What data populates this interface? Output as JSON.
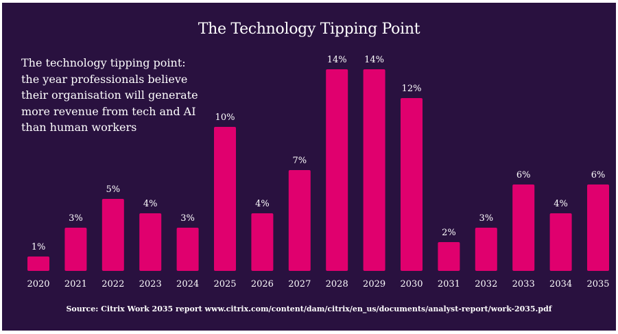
{
  "chart_data": {
    "type": "bar",
    "title": "The Technology Tipping Point",
    "subtitle": "The technology tipping point: the year professionals believe their organisation will generate more revenue from tech and AI than human workers",
    "source": "Source: Citrix Work 2035 report www.citrix.com/content/dam/citrix/en_us/documents/analyst-report/work-2035.pdf",
    "categories": [
      "2020",
      "2021",
      "2022",
      "2023",
      "2024",
      "2025",
      "2026",
      "2027",
      "2028",
      "2029",
      "2030",
      "2031",
      "2032",
      "2033",
      "2034",
      "2035"
    ],
    "values": [
      1,
      3,
      5,
      4,
      3,
      10,
      4,
      7,
      14,
      14,
      12,
      2,
      3,
      6,
      4,
      6
    ],
    "value_labels": [
      "1%",
      "3%",
      "5%",
      "4%",
      "3%",
      "10%",
      "4%",
      "7%",
      "14%",
      "14%",
      "12%",
      "2%",
      "3%",
      "6%",
      "4%",
      "6%"
    ],
    "unit": "%",
    "ylim": [
      0,
      14
    ],
    "grid": false,
    "colors": {
      "background": "#29113f",
      "bar": "#e0006e",
      "text": "#ffffff"
    }
  }
}
